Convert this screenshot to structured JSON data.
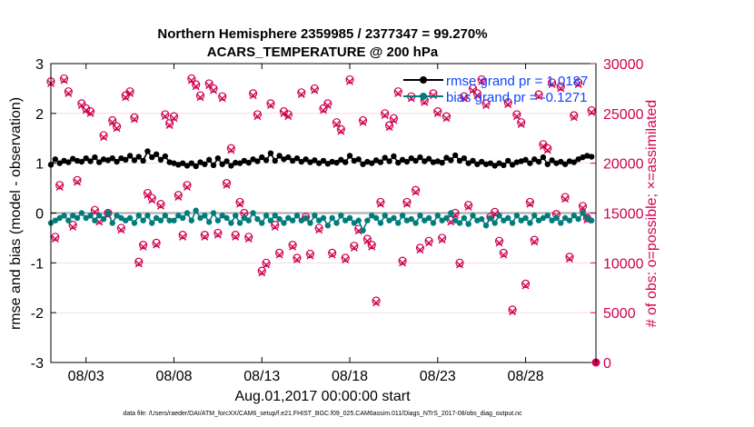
{
  "chart_data": {
    "type": "line",
    "title": "Northern Hemisphere 2359985 / 2377347 = 99.270%",
    "subtitle": "ACARS_TEMPERATURE @ 200 hPa",
    "xlabel": "Aug.01,2017 00:00:00 start",
    "ylabel_left": "rmse and bias (model - observation)",
    "ylabel_right": "# of obs: o=possible; ×=assimilated",
    "footnote": "data file: /Users/raeder/DAI/ATM_forcXX/CAM6_setup/f.e21.FHIST_BGC.f09_025.CAM6assim.011/Diags_NTrS_2017-08/obs_diag_output.nc",
    "xlim": [
      1.0,
      32.0
    ],
    "ylim_left": [
      -3,
      3
    ],
    "ylim_right": [
      0,
      30000
    ],
    "x_ticks": [
      {
        "value": 3,
        "label": "08/03"
      },
      {
        "value": 8,
        "label": "08/08"
      },
      {
        "value": 13,
        "label": "08/13"
      },
      {
        "value": 18,
        "label": "08/18"
      },
      {
        "value": 23,
        "label": "08/23"
      },
      {
        "value": 28,
        "label": "08/28"
      }
    ],
    "y_ticks_left": [
      {
        "value": 3,
        "label": "3"
      },
      {
        "value": 2,
        "label": "2"
      },
      {
        "value": 1,
        "label": "1"
      },
      {
        "value": 0,
        "label": "0"
      },
      {
        "value": -1,
        "label": "-1"
      },
      {
        "value": -2,
        "label": "-2"
      },
      {
        "value": -3,
        "label": "-3"
      }
    ],
    "y_ticks_right": [
      {
        "value": 30000,
        "label": "30000"
      },
      {
        "value": 25000,
        "label": "25000"
      },
      {
        "value": 20000,
        "label": "20000"
      },
      {
        "value": 15000,
        "label": "15000"
      },
      {
        "value": 10000,
        "label": "10000"
      },
      {
        "value": 5000,
        "label": "5000"
      },
      {
        "value": 0,
        "label": "0"
      }
    ],
    "legend": [
      {
        "name": "rmse",
        "label": "rmse grand pr = 1.0187",
        "color": "#000000"
      },
      {
        "name": "bias",
        "label": "bias grand pr = -0.1271",
        "color": "#007c7c"
      }
    ],
    "colors": {
      "rmse": "#000000",
      "bias": "#007c7c",
      "obs": "#d1004f",
      "zero_line": "#b0b0b0"
    },
    "series": [
      {
        "name": "rmse",
        "axis": "left",
        "x": [
          1.0,
          1.25,
          1.5,
          1.75,
          2.0,
          2.25,
          2.5,
          2.75,
          3.0,
          3.25,
          3.5,
          3.75,
          4.0,
          4.25,
          4.5,
          4.75,
          5.0,
          5.25,
          5.5,
          5.75,
          6.0,
          6.25,
          6.5,
          6.75,
          7.0,
          7.25,
          7.5,
          7.75,
          8.0,
          8.25,
          8.5,
          8.75,
          9.0,
          9.25,
          9.5,
          9.75,
          10.0,
          10.25,
          10.5,
          10.75,
          11.0,
          11.25,
          11.5,
          11.75,
          12.0,
          12.25,
          12.5,
          12.75,
          13.0,
          13.25,
          13.5,
          13.75,
          14.0,
          14.25,
          14.5,
          14.75,
          15.0,
          15.25,
          15.5,
          15.75,
          16.0,
          16.25,
          16.5,
          16.75,
          17.0,
          17.25,
          17.5,
          17.75,
          18.0,
          18.25,
          18.5,
          18.75,
          19.0,
          19.25,
          19.5,
          19.75,
          20.0,
          20.25,
          20.5,
          20.75,
          21.0,
          21.25,
          21.5,
          21.75,
          22.0,
          22.25,
          22.5,
          22.75,
          23.0,
          23.25,
          23.5,
          23.75,
          24.0,
          24.25,
          24.5,
          24.75,
          25.0,
          25.25,
          25.5,
          25.75,
          26.0,
          26.25,
          26.5,
          26.75,
          27.0,
          27.25,
          27.5,
          27.75,
          28.0,
          28.25,
          28.5,
          28.75,
          29.0,
          29.25,
          29.5,
          29.75,
          30.0,
          30.25,
          30.5,
          30.75,
          31.0,
          31.25,
          31.5,
          31.75
        ],
        "values": [
          0.97,
          1.08,
          1.0,
          1.05,
          1.02,
          1.09,
          1.05,
          1.03,
          1.1,
          1.04,
          1.12,
          1.02,
          1.08,
          1.06,
          1.1,
          1.03,
          1.1,
          1.07,
          1.15,
          1.06,
          1.13,
          1.05,
          1.24,
          1.12,
          1.18,
          1.07,
          1.14,
          1.02,
          1.0,
          0.97,
          1.0,
          0.95,
          1.0,
          0.94,
          1.02,
          0.98,
          1.07,
          0.96,
          1.1,
          0.98,
          1.04,
          0.95,
          1.01,
          1.0,
          1.05,
          1.01,
          1.08,
          1.04,
          1.12,
          1.06,
          1.2,
          1.05,
          1.15,
          1.08,
          1.12,
          1.05,
          1.1,
          1.03,
          1.08,
          1.02,
          1.06,
          1.0,
          1.05,
          0.99,
          1.03,
          1.01,
          1.07,
          1.02,
          1.15,
          1.05,
          1.08,
          0.98,
          1.03,
          1.0,
          1.06,
          1.02,
          1.11,
          1.04,
          1.14,
          1.01,
          1.07,
          1.03,
          1.1,
          1.05,
          1.12,
          1.04,
          1.09,
          1.02,
          1.04,
          1.01,
          1.11,
          1.06,
          1.16,
          1.05,
          1.1,
          1.0,
          1.05,
          0.98,
          1.03,
          0.98,
          1.0,
          0.95,
          1.0,
          0.96,
          1.05,
          0.97,
          1.02,
          1.04,
          1.07,
          1.0,
          1.08,
          1.03,
          1.12,
          0.98,
          1.06,
          1.0,
          1.03,
          0.98,
          1.04,
          1.02,
          1.08,
          1.12,
          1.15,
          1.13
        ]
      },
      {
        "name": "bias",
        "axis": "left",
        "x": [
          1.0,
          1.25,
          1.5,
          1.75,
          2.0,
          2.25,
          2.5,
          2.75,
          3.0,
          3.25,
          3.5,
          3.75,
          4.0,
          4.25,
          4.5,
          4.75,
          5.0,
          5.25,
          5.5,
          5.75,
          6.0,
          6.25,
          6.5,
          6.75,
          7.0,
          7.25,
          7.5,
          7.75,
          8.0,
          8.25,
          8.5,
          8.75,
          9.0,
          9.25,
          9.5,
          9.75,
          10.0,
          10.25,
          10.5,
          10.75,
          11.0,
          11.25,
          11.5,
          11.75,
          12.0,
          12.25,
          12.5,
          12.75,
          13.0,
          13.25,
          13.5,
          13.75,
          14.0,
          14.25,
          14.5,
          14.75,
          15.0,
          15.25,
          15.5,
          15.75,
          16.0,
          16.25,
          16.5,
          16.75,
          17.0,
          17.25,
          17.5,
          17.75,
          18.0,
          18.25,
          18.5,
          18.75,
          19.0,
          19.25,
          19.5,
          19.75,
          20.0,
          20.25,
          20.5,
          20.75,
          21.0,
          21.25,
          21.5,
          21.75,
          22.0,
          22.25,
          22.5,
          22.75,
          23.0,
          23.25,
          23.5,
          23.75,
          24.0,
          24.25,
          24.5,
          24.75,
          25.0,
          25.25,
          25.5,
          25.75,
          26.0,
          26.25,
          26.5,
          26.75,
          27.0,
          27.25,
          27.5,
          27.75,
          28.0,
          28.25,
          28.5,
          28.75,
          29.0,
          29.25,
          29.5,
          29.75,
          30.0,
          30.25,
          30.5,
          30.75,
          31.0,
          31.25,
          31.5,
          31.75
        ],
        "values": [
          -0.2,
          -0.15,
          -0.1,
          -0.05,
          -0.15,
          -0.05,
          -0.1,
          0.0,
          -0.1,
          -0.05,
          -0.15,
          -0.05,
          -0.12,
          0.0,
          -0.2,
          -0.05,
          -0.1,
          -0.15,
          -0.1,
          -0.2,
          -0.05,
          -0.15,
          -0.05,
          -0.2,
          -0.1,
          -0.15,
          -0.05,
          -0.15,
          -0.15,
          -0.05,
          -0.1,
          0.0,
          -0.15,
          0.05,
          -0.1,
          -0.05,
          -0.18,
          0.0,
          -0.15,
          -0.05,
          -0.1,
          -0.2,
          -0.05,
          -0.2,
          -0.1,
          -0.15,
          0.0,
          -0.12,
          -0.2,
          -0.05,
          -0.15,
          -0.05,
          -0.12,
          -0.2,
          -0.1,
          -0.15,
          -0.05,
          -0.15,
          -0.1,
          -0.2,
          -0.05,
          -0.15,
          -0.1,
          -0.25,
          -0.1,
          -0.2,
          -0.05,
          -0.15,
          -0.1,
          -0.2,
          -0.15,
          -0.35,
          -0.15,
          -0.05,
          -0.1,
          -0.2,
          -0.05,
          -0.15,
          -0.1,
          -0.2,
          -0.05,
          -0.15,
          -0.12,
          -0.2,
          -0.05,
          -0.15,
          -0.1,
          -0.2,
          -0.05,
          -0.15,
          -0.1,
          0.0,
          -0.15,
          -0.2,
          -0.1,
          -0.22,
          -0.05,
          -0.15,
          -0.12,
          -0.25,
          -0.1,
          -0.2,
          -0.05,
          -0.15,
          -0.1,
          -0.2,
          -0.05,
          -0.15,
          -0.1,
          -0.2,
          -0.05,
          -0.15,
          -0.1,
          -0.05,
          -0.15,
          -0.1,
          -0.2,
          -0.1,
          -0.15,
          -0.05,
          -0.12,
          0.0,
          -0.1,
          -0.15
        ]
      },
      {
        "name": "obs_possible",
        "axis": "right",
        "marker": "o",
        "x": [
          1.0,
          1.25,
          1.5,
          1.75,
          2.0,
          2.25,
          2.5,
          2.75,
          3.0,
          3.25,
          3.5,
          3.75,
          4.0,
          4.25,
          4.5,
          4.75,
          5.0,
          5.25,
          5.5,
          5.75,
          6.0,
          6.25,
          6.5,
          6.75,
          7.0,
          7.25,
          7.5,
          7.75,
          8.0,
          8.25,
          8.5,
          8.75,
          9.0,
          9.25,
          9.5,
          9.75,
          10.0,
          10.25,
          10.5,
          10.75,
          11.0,
          11.25,
          11.5,
          11.75,
          12.0,
          12.25,
          12.5,
          12.75,
          13.0,
          13.25,
          13.5,
          13.75,
          14.0,
          14.25,
          14.5,
          14.75,
          15.0,
          15.25,
          15.5,
          15.75,
          16.0,
          16.25,
          16.5,
          16.75,
          17.0,
          17.25,
          17.5,
          17.75,
          18.0,
          18.25,
          18.5,
          18.75,
          19.0,
          19.25,
          19.5,
          19.75,
          20.0,
          20.25,
          20.5,
          20.75,
          21.0,
          21.25,
          21.5,
          21.75,
          22.0,
          22.25,
          22.5,
          22.75,
          23.0,
          23.25,
          23.5,
          23.75,
          24.0,
          24.25,
          24.5,
          24.75,
          25.0,
          25.25,
          25.5,
          25.75,
          26.0,
          26.25,
          26.5,
          26.75,
          27.0,
          27.25,
          27.5,
          27.75,
          28.0,
          28.25,
          28.5,
          28.75,
          29.0,
          29.25,
          29.5,
          29.75,
          30.0,
          30.25,
          30.5,
          30.75,
          31.0,
          31.25,
          31.5,
          31.75
        ],
        "values": [
          28200,
          12600,
          17800,
          28500,
          27200,
          13800,
          18300,
          26000,
          25500,
          25200,
          15300,
          14300,
          22800,
          15000,
          24300,
          23700,
          13500,
          26800,
          27200,
          24600,
          10100,
          11800,
          17000,
          16500,
          12000,
          15900,
          24900,
          24000,
          24700,
          16800,
          12800,
          17800,
          28500,
          27900,
          26800,
          12800,
          28000,
          27500,
          13000,
          26700,
          18000,
          21500,
          12800,
          16100,
          15000,
          12600,
          27000,
          24900,
          9200,
          10000,
          26000,
          13800,
          11000,
          25200,
          24900,
          11800,
          10500,
          27100,
          14600,
          10900,
          27500,
          13500,
          25500,
          26000,
          11000,
          24100,
          23400,
          10500,
          28400,
          11700,
          13400,
          24300,
          12400,
          11800,
          6200,
          16100,
          25000,
          23800,
          24500,
          27200,
          10200,
          16100,
          26700,
          17300,
          11500,
          26300,
          12200,
          27000,
          25200,
          12500,
          24700,
          14300,
          15000,
          10000,
          26700,
          15800,
          27500,
          27000,
          28400,
          26000,
          14600,
          15100,
          12200,
          11000,
          26100,
          5300,
          24900,
          24100,
          7900,
          16100,
          12300,
          26900,
          21900,
          21500,
          28100,
          14900,
          27700,
          16600,
          10600,
          24800,
          28100,
          15700,
          14500,
          25300
        ]
      },
      {
        "name": "obs_assimilated",
        "axis": "right",
        "marker": "x",
        "x": [
          1.0,
          1.25,
          1.5,
          1.75,
          2.0,
          2.25,
          2.5,
          2.75,
          3.0,
          3.25,
          3.5,
          3.75,
          4.0,
          4.25,
          4.5,
          4.75,
          5.0,
          5.25,
          5.5,
          5.75,
          6.0,
          6.25,
          6.5,
          6.75,
          7.0,
          7.25,
          7.5,
          7.75,
          8.0,
          8.25,
          8.5,
          8.75,
          9.0,
          9.25,
          9.5,
          9.75,
          10.0,
          10.25,
          10.5,
          10.75,
          11.0,
          11.25,
          11.5,
          11.75,
          12.0,
          12.25,
          12.5,
          12.75,
          13.0,
          13.25,
          13.5,
          13.75,
          14.0,
          14.25,
          14.5,
          14.75,
          15.0,
          15.25,
          15.5,
          15.75,
          16.0,
          16.25,
          16.5,
          16.75,
          17.0,
          17.25,
          17.5,
          17.75,
          18.0,
          18.25,
          18.5,
          18.75,
          19.0,
          19.25,
          19.5,
          19.75,
          20.0,
          20.25,
          20.5,
          20.75,
          21.0,
          21.25,
          21.5,
          21.75,
          22.0,
          22.25,
          22.5,
          22.75,
          23.0,
          23.25,
          23.5,
          23.75,
          24.0,
          24.25,
          24.5,
          24.75,
          25.0,
          25.25,
          25.5,
          25.75,
          26.0,
          26.25,
          26.5,
          26.75,
          27.0,
          27.25,
          27.5,
          27.75,
          28.0,
          28.25,
          28.5,
          28.75,
          29.0,
          29.25,
          29.5,
          29.75,
          30.0,
          30.25,
          30.5,
          30.75,
          31.0,
          31.25,
          31.5,
          31.75
        ],
        "values": [
          28000,
          12400,
          17600,
          28300,
          27000,
          13600,
          18100,
          25800,
          25300,
          25000,
          15100,
          14100,
          22600,
          14800,
          24100,
          23500,
          13300,
          26600,
          27000,
          24400,
          9900,
          11600,
          16800,
          16300,
          11800,
          15700,
          24700,
          23800,
          24500,
          16600,
          12600,
          17600,
          28300,
          27700,
          26600,
          12600,
          27800,
          27300,
          12800,
          26500,
          17800,
          21300,
          12600,
          15900,
          14800,
          12400,
          26800,
          24700,
          9000,
          9800,
          25800,
          13600,
          10800,
          25000,
          24700,
          11600,
          10300,
          26900,
          14400,
          10700,
          27300,
          13300,
          25300,
          25800,
          10800,
          23900,
          23200,
          10300,
          28200,
          11500,
          13200,
          24100,
          12200,
          11600,
          6000,
          15900,
          24800,
          23600,
          24300,
          27000,
          10000,
          15900,
          26500,
          17100,
          11300,
          26100,
          12000,
          26800,
          25000,
          12300,
          24500,
          14100,
          14800,
          9800,
          26500,
          15600,
          27300,
          26800,
          28200,
          25800,
          14400,
          14900,
          12000,
          10800,
          25900,
          5100,
          24700,
          23900,
          7700,
          15900,
          12100,
          26700,
          21700,
          21300,
          27900,
          14700,
          27500,
          16400,
          10400,
          24600,
          27900,
          15500,
          14300,
          25100
        ]
      }
    ]
  }
}
